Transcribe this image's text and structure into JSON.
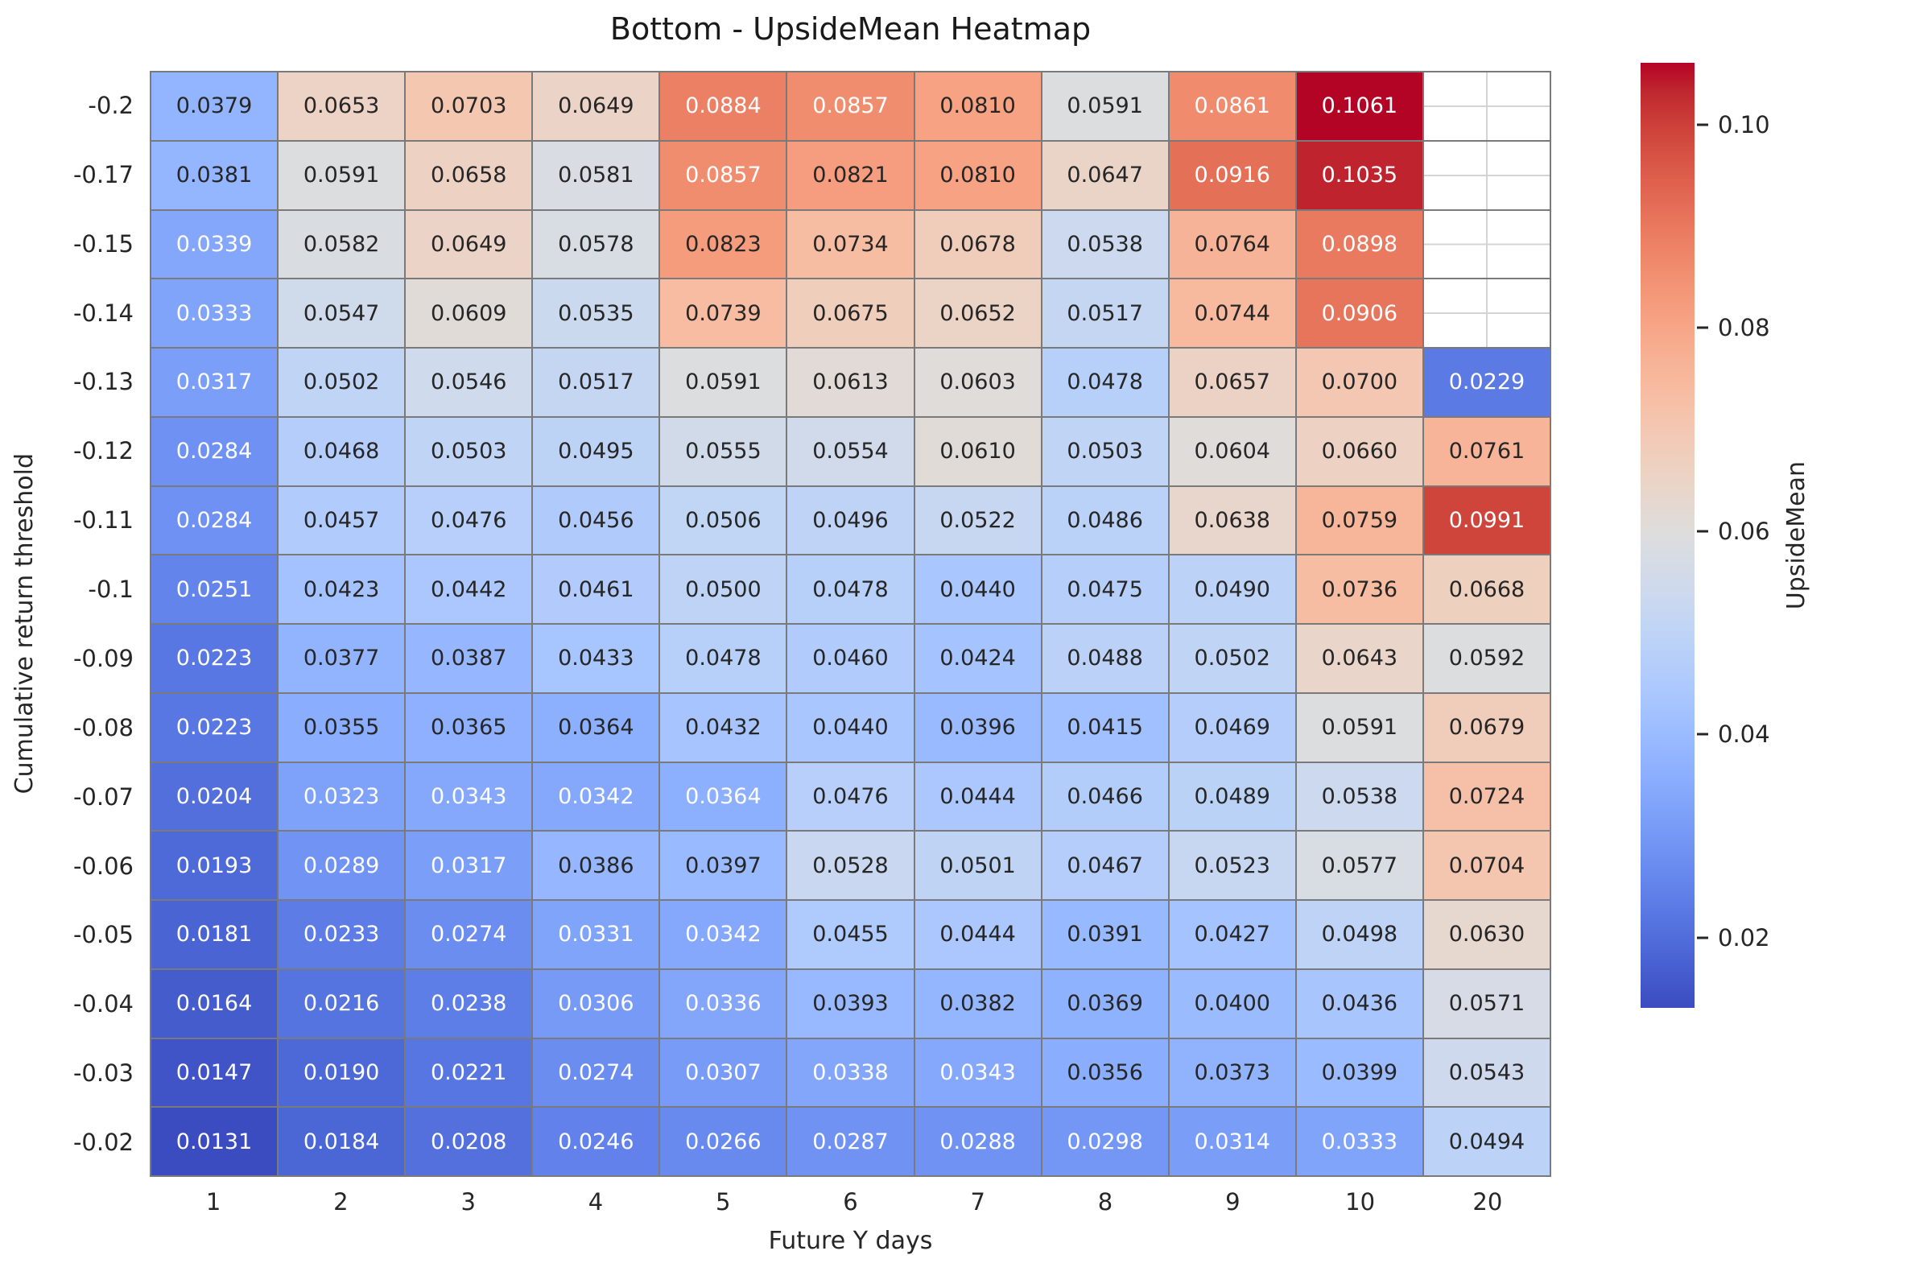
{
  "chart_data": {
    "type": "heatmap",
    "title": "Bottom - UpsideMean Heatmap",
    "xlabel": "Future Y days",
    "ylabel": "Cumulative return threshold",
    "x_categories": [
      "1",
      "2",
      "3",
      "4",
      "5",
      "6",
      "7",
      "8",
      "9",
      "10",
      "20"
    ],
    "y_categories": [
      "-0.2",
      "-0.17",
      "-0.15",
      "-0.14",
      "-0.13",
      "-0.12",
      "-0.11",
      "-0.1",
      "-0.09",
      "-0.08",
      "-0.07",
      "-0.06",
      "-0.05",
      "-0.04",
      "-0.03",
      "-0.02"
    ],
    "values": [
      [
        0.0379,
        0.0653,
        0.0703,
        0.0649,
        0.0884,
        0.0857,
        0.081,
        0.0591,
        0.0861,
        0.1061,
        null
      ],
      [
        0.0381,
        0.0591,
        0.0658,
        0.0581,
        0.0857,
        0.0821,
        0.081,
        0.0647,
        0.0916,
        0.1035,
        null
      ],
      [
        0.0339,
        0.0582,
        0.0649,
        0.0578,
        0.0823,
        0.0734,
        0.0678,
        0.0538,
        0.0764,
        0.0898,
        null
      ],
      [
        0.0333,
        0.0547,
        0.0609,
        0.0535,
        0.0739,
        0.0675,
        0.0652,
        0.0517,
        0.0744,
        0.0906,
        null
      ],
      [
        0.0317,
        0.0502,
        0.0546,
        0.0517,
        0.0591,
        0.0613,
        0.0603,
        0.0478,
        0.0657,
        0.07,
        0.0229
      ],
      [
        0.0284,
        0.0468,
        0.0503,
        0.0495,
        0.0555,
        0.0554,
        0.061,
        0.0503,
        0.0604,
        0.066,
        0.0761
      ],
      [
        0.0284,
        0.0457,
        0.0476,
        0.0456,
        0.0506,
        0.0496,
        0.0522,
        0.0486,
        0.0638,
        0.0759,
        0.0991
      ],
      [
        0.0251,
        0.0423,
        0.0442,
        0.0461,
        0.05,
        0.0478,
        0.044,
        0.0475,
        0.049,
        0.0736,
        0.0668
      ],
      [
        0.0223,
        0.0377,
        0.0387,
        0.0433,
        0.0478,
        0.046,
        0.0424,
        0.0488,
        0.0502,
        0.0643,
        0.0592
      ],
      [
        0.0223,
        0.0355,
        0.0365,
        0.0364,
        0.0432,
        0.044,
        0.0396,
        0.0415,
        0.0469,
        0.0591,
        0.0679
      ],
      [
        0.0204,
        0.0323,
        0.0343,
        0.0342,
        0.0364,
        0.0476,
        0.0444,
        0.0466,
        0.0489,
        0.0538,
        0.0724
      ],
      [
        0.0193,
        0.0289,
        0.0317,
        0.0386,
        0.0397,
        0.0528,
        0.0501,
        0.0467,
        0.0523,
        0.0577,
        0.0704
      ],
      [
        0.0181,
        0.0233,
        0.0274,
        0.0331,
        0.0342,
        0.0455,
        0.0444,
        0.0391,
        0.0427,
        0.0498,
        0.063
      ],
      [
        0.0164,
        0.0216,
        0.0238,
        0.0306,
        0.0336,
        0.0393,
        0.0382,
        0.0369,
        0.04,
        0.0436,
        0.0571
      ],
      [
        0.0147,
        0.019,
        0.0221,
        0.0274,
        0.0307,
        0.0338,
        0.0343,
        0.0356,
        0.0373,
        0.0399,
        0.0543
      ],
      [
        0.0131,
        0.0184,
        0.0208,
        0.0246,
        0.0266,
        0.0287,
        0.0288,
        0.0298,
        0.0314,
        0.0333,
        0.0494
      ]
    ],
    "value_format_decimals": 4,
    "vmin": 0.0131,
    "vmax": 0.1061,
    "colormap": "coolwarm",
    "grid": "cell borders on; masked cells show light center gridlines",
    "legend_position": "right colorbar",
    "colorbar": {
      "label": "UpsideMean",
      "tick_labels": [
        "0.10",
        "0.08",
        "0.06",
        "0.04",
        "0.02"
      ],
      "tick_values": [
        0.1,
        0.08,
        0.06,
        0.04,
        0.02
      ]
    },
    "colors": {
      "min_color": "#3b4cc0",
      "mid_color": "#dddddd",
      "max_color": "#b40426",
      "cell_border": "#7a7a7a",
      "masked_cell": "#ffffff",
      "masked_grid_line": "#d4d4d4",
      "text_dark": "#262626",
      "text_light": "#ffffff"
    },
    "text_color_overrides": [
      {
        "row": 10,
        "col": 4,
        "color": "#ffffff"
      }
    ]
  }
}
